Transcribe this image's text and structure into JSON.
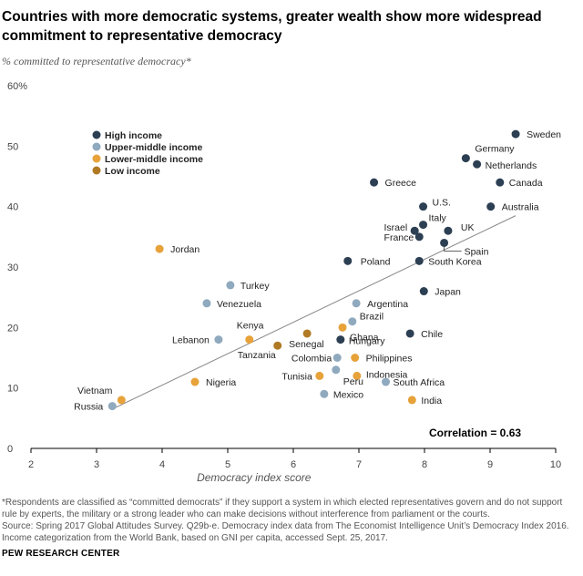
{
  "title": "Countries with more democratic systems, greater wealth show more widespread commitment to representative democracy",
  "subtitle": "% committed to representative democracy*",
  "footnote": "*Respondents are classified as “committed democrats” if they support a system in which elected representatives govern and do not support rule by experts, the military or a strong leader who can make decisions without interference from parliament or the courts.",
  "source": "Source: Spring 2017 Global Attitudes Survey. Q29b-e. Democracy index data from The Economist Intelligence Unit’s Democracy Index 2016. Income categorization from the World Bank, based on GNI per capita, accessed Sept. 25, 2017.",
  "brand": "PEW RESEARCH CENTER",
  "colors": {
    "high": "#2c3f53",
    "upper": "#8fa9be",
    "lower": "#e7a23a",
    "low": "#b07a24",
    "axis": "#000000",
    "trend": "#888888"
  },
  "chart_data": {
    "type": "scatter",
    "title": "Countries with more democratic systems, greater wealth show more widespread commitment to representative democracy",
    "xlabel": "Democracy index score",
    "ylabel": "% committed to representative democracy*",
    "xlim": [
      2,
      10
    ],
    "ylim": [
      0,
      60
    ],
    "xticks": [
      2,
      3,
      4,
      5,
      6,
      7,
      8,
      9,
      10
    ],
    "yticks": [
      0,
      10,
      20,
      30,
      40,
      50,
      60
    ],
    "ytick_labels": [
      "0",
      "10",
      "20",
      "30",
      "40",
      "50",
      "60%"
    ],
    "grid": false,
    "legend_position": "top-left",
    "legend": [
      {
        "key": "high",
        "label": "High income"
      },
      {
        "key": "upper",
        "label": "Upper-middle income"
      },
      {
        "key": "lower",
        "label": "Lower-middle income"
      },
      {
        "key": "low",
        "label": "Low income"
      }
    ],
    "trendline": {
      "x": [
        3.24,
        9.39
      ],
      "y": [
        6.5,
        38.5
      ]
    },
    "annotation": "Correlation = 0.63",
    "points": [
      {
        "name": "Sweden",
        "x": 9.39,
        "y": 52,
        "group": "high"
      },
      {
        "name": "Germany",
        "x": 8.63,
        "y": 48,
        "group": "high"
      },
      {
        "name": "Netherlands",
        "x": 8.8,
        "y": 47,
        "group": "high"
      },
      {
        "name": "Canada",
        "x": 9.15,
        "y": 44,
        "group": "high"
      },
      {
        "name": "Greece",
        "x": 7.23,
        "y": 44,
        "group": "high"
      },
      {
        "name": "U.S.",
        "x": 7.98,
        "y": 40,
        "group": "high"
      },
      {
        "name": "Australia",
        "x": 9.01,
        "y": 40,
        "group": "high"
      },
      {
        "name": "Italy",
        "x": 7.98,
        "y": 37,
        "group": "high"
      },
      {
        "name": "Israel",
        "x": 7.85,
        "y": 36,
        "group": "high"
      },
      {
        "name": "UK",
        "x": 8.36,
        "y": 36,
        "group": "high"
      },
      {
        "name": "France",
        "x": 7.92,
        "y": 35,
        "group": "high"
      },
      {
        "name": "Spain",
        "x": 8.3,
        "y": 34,
        "group": "high"
      },
      {
        "name": "Poland",
        "x": 6.83,
        "y": 31,
        "group": "high"
      },
      {
        "name": "South Korea",
        "x": 7.92,
        "y": 31,
        "group": "high"
      },
      {
        "name": "Japan",
        "x": 7.99,
        "y": 26,
        "group": "high"
      },
      {
        "name": "Chile",
        "x": 7.78,
        "y": 19,
        "group": "high"
      },
      {
        "name": "Hungary",
        "x": 6.72,
        "y": 18,
        "group": "high"
      },
      {
        "name": "Jordan",
        "x": 3.96,
        "y": 33,
        "group": "lower"
      },
      {
        "name": "Turkey",
        "x": 5.04,
        "y": 27,
        "group": "upper"
      },
      {
        "name": "Venezuela",
        "x": 4.68,
        "y": 24,
        "group": "upper"
      },
      {
        "name": "Argentina",
        "x": 6.96,
        "y": 24,
        "group": "upper"
      },
      {
        "name": "Brazil",
        "x": 6.9,
        "y": 21,
        "group": "upper"
      },
      {
        "name": "Lebanon",
        "x": 4.86,
        "y": 18,
        "group": "upper"
      },
      {
        "name": "Colombia",
        "x": 6.67,
        "y": 15,
        "group": "upper"
      },
      {
        "name": "Peru",
        "x": 6.65,
        "y": 13,
        "group": "upper"
      },
      {
        "name": "Mexico",
        "x": 6.47,
        "y": 9,
        "group": "upper"
      },
      {
        "name": "South Africa",
        "x": 7.41,
        "y": 11,
        "group": "upper"
      },
      {
        "name": "Russia",
        "x": 3.24,
        "y": 7,
        "group": "upper"
      },
      {
        "name": "Kenya",
        "x": 5.33,
        "y": 18,
        "group": "lower"
      },
      {
        "name": "Ghana",
        "x": 6.75,
        "y": 20,
        "group": "lower"
      },
      {
        "name": "Philippines",
        "x": 6.94,
        "y": 15,
        "group": "lower"
      },
      {
        "name": "Tunisia",
        "x": 6.4,
        "y": 12,
        "group": "lower"
      },
      {
        "name": "Indonesia",
        "x": 6.97,
        "y": 12,
        "group": "lower"
      },
      {
        "name": "Nigeria",
        "x": 4.5,
        "y": 11,
        "group": "lower"
      },
      {
        "name": "Vietnam",
        "x": 3.38,
        "y": 8,
        "group": "lower"
      },
      {
        "name": "India",
        "x": 7.81,
        "y": 8,
        "group": "lower"
      },
      {
        "name": "Senegal",
        "x": 6.21,
        "y": 19,
        "group": "low"
      },
      {
        "name": "Tanzania",
        "x": 5.76,
        "y": 17,
        "group": "low"
      }
    ]
  }
}
